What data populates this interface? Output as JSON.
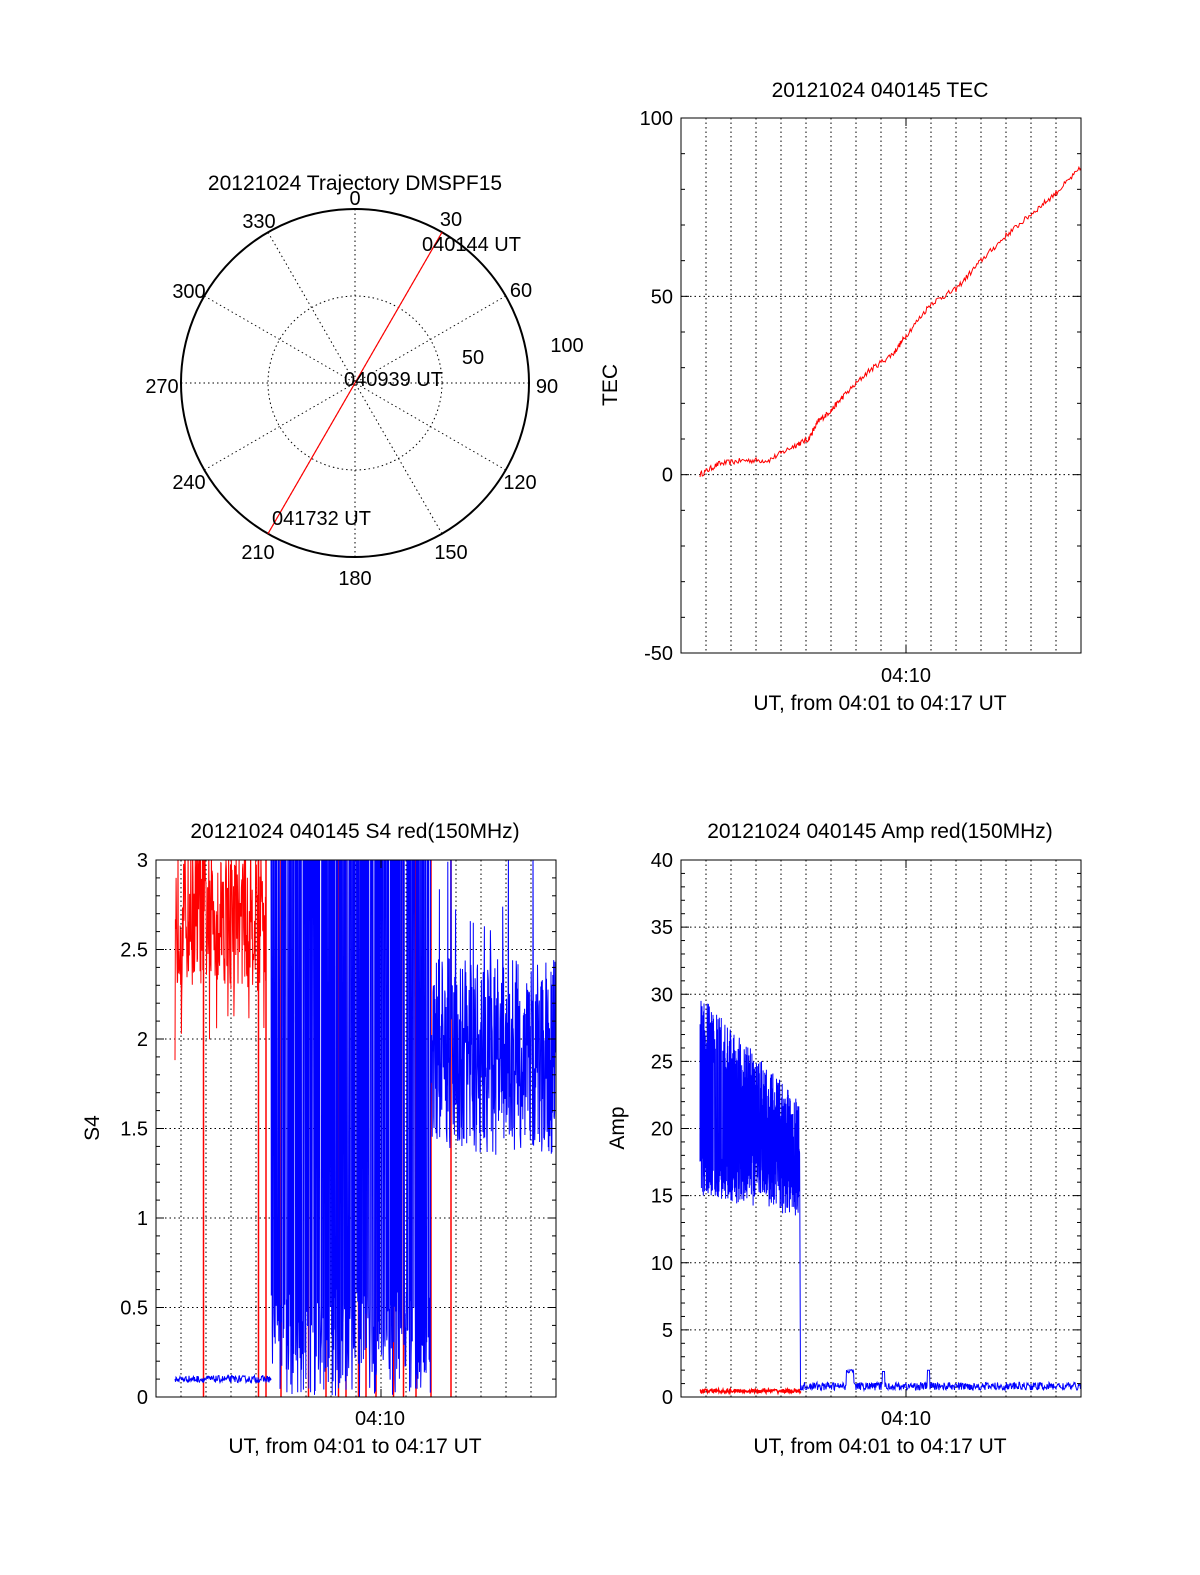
{
  "colors": {
    "red": "#ff0000",
    "blue": "#0000ff",
    "axis": "#000000"
  },
  "chart_data": [
    {
      "type": "polar",
      "title": "20121024 Trajectory DMSPF15",
      "angle_labels": [
        "0",
        "30",
        "60",
        "90",
        "120",
        "150",
        "180",
        "210",
        "240",
        "270",
        "300",
        "330"
      ],
      "radius_labels": [
        "50",
        "100"
      ],
      "rmax": 100,
      "track": {
        "color": "red",
        "start": {
          "label": "040144 UT",
          "az": 30,
          "r": 100
        },
        "mid": {
          "label": "040939 UT",
          "az": 0,
          "r": 0
        },
        "end": {
          "label": "041732 UT",
          "az": 210,
          "r": 100
        }
      },
      "grid": true
    },
    {
      "type": "line",
      "title": "20121024 040145 TEC",
      "ylabel": "TEC",
      "xlabel": "UT, from 04:01 to 04:17 UT",
      "ylim": [
        -50,
        100
      ],
      "yticks": [
        "-50",
        "0",
        "50",
        "100"
      ],
      "xlim": [
        1.0,
        17.0
      ],
      "xtick_label": "04:10",
      "grid": true,
      "series": [
        {
          "color": "red",
          "x": [
            1.76,
            2.5,
            3.5,
            4.5,
            5.5,
            6.1,
            6.5,
            7.0,
            7.5,
            8.5,
            9.5,
            10.0,
            11.0,
            12.0,
            13.0,
            14.0,
            15.0,
            16.0,
            17.0
          ],
          "y": [
            0,
            3,
            4,
            4,
            8,
            10,
            15,
            18,
            22,
            29,
            34,
            39,
            48,
            52,
            60,
            67,
            73,
            79,
            86
          ]
        }
      ]
    },
    {
      "type": "line",
      "title": "20121024 040145 S4 red(150MHz)",
      "ylabel": "S4",
      "xlabel": "UT, from 04:01 to 04:17 UT",
      "ylim": [
        0,
        3
      ],
      "yticks": [
        "0",
        "0.5",
        "1",
        "1.5",
        "2",
        "2.5",
        "3"
      ],
      "xlim": [
        1.0,
        17.0
      ],
      "xtick_label": "04:10",
      "grid": true,
      "series": [
        {
          "color": "red",
          "x_range": [
            1.76,
            12.8
          ],
          "baseline_range": [
            2.2,
            3.0
          ]
        },
        {
          "color": "blue",
          "x_range": [
            1.76,
            17.0
          ],
          "initial_level": 0.1,
          "late_range": [
            1.3,
            2.6
          ]
        }
      ]
    },
    {
      "type": "line",
      "title": "20121024 040145 Amp red(150MHz)",
      "ylabel": "Amp",
      "xlabel": "UT, from 04:01 to 04:17 UT",
      "ylim": [
        0,
        40
      ],
      "yticks": [
        "0",
        "5",
        "10",
        "15",
        "20",
        "25",
        "30",
        "35",
        "40"
      ],
      "xlim": [
        1.0,
        17.0
      ],
      "xtick_label": "04:10",
      "grid": true,
      "series": [
        {
          "color": "blue",
          "x_range": [
            1.76,
            17.0
          ],
          "early_range": [
            14,
            30
          ],
          "late_level": 0.5
        },
        {
          "color": "red",
          "x_range": [
            1.76,
            5.8
          ],
          "level": 0.3
        }
      ]
    }
  ]
}
